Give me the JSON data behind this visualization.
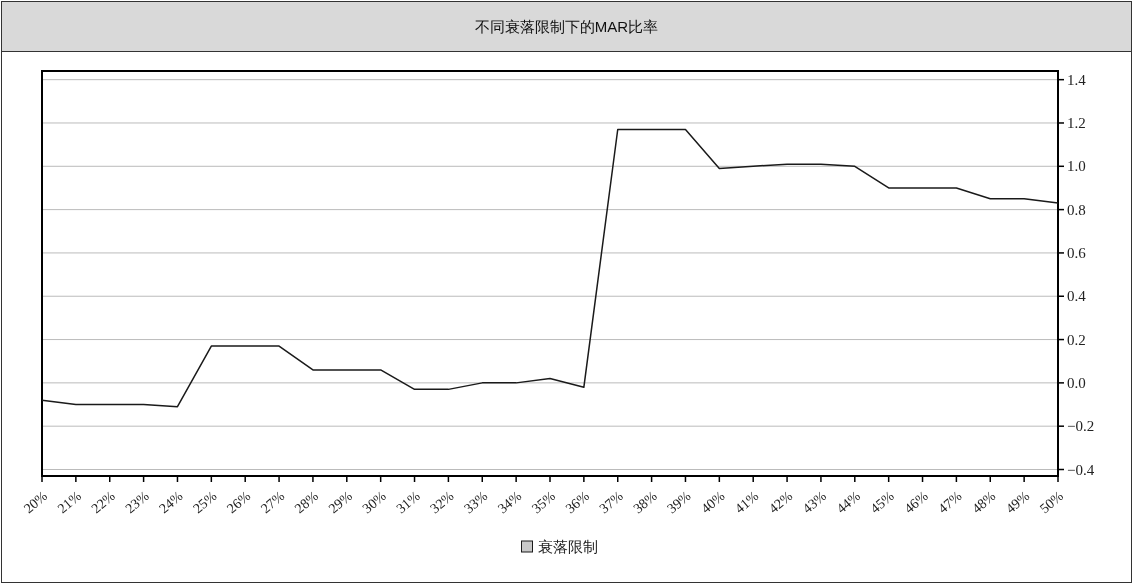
{
  "chart_data": {
    "type": "line",
    "title": "不同衰落限制下的MAR比率",
    "categories": [
      "20%",
      "21%",
      "22%",
      "23%",
      "24%",
      "25%",
      "26%",
      "27%",
      "28%",
      "29%",
      "30%",
      "31%",
      "32%",
      "33%",
      "34%",
      "35%",
      "36%",
      "37%",
      "38%",
      "39%",
      "40%",
      "41%",
      "42%",
      "43%",
      "44%",
      "45%",
      "46%",
      "47%",
      "48%",
      "49%",
      "50%"
    ],
    "series": [
      {
        "name": "衰落限制",
        "color": "#1a1a1a",
        "values": [
          -0.08,
          -0.1,
          -0.1,
          -0.1,
          -0.11,
          0.17,
          0.17,
          0.17,
          0.06,
          0.06,
          0.06,
          -0.03,
          -0.03,
          0.0,
          0.0,
          0.02,
          -0.02,
          1.17,
          1.17,
          1.17,
          0.99,
          1.0,
          1.01,
          1.01,
          1.0,
          0.9,
          0.9,
          0.9,
          0.85,
          0.85,
          0.83
        ]
      }
    ],
    "ylim": [
      -0.43,
      1.44
    ],
    "yticks": [
      {
        "value": 1.4,
        "label": "1.4"
      },
      {
        "value": 1.2,
        "label": "1.2"
      },
      {
        "value": 1.0,
        "label": "1.0"
      },
      {
        "value": 0.8,
        "label": "0.8"
      },
      {
        "value": 0.6,
        "label": "0.6"
      },
      {
        "value": 0.4,
        "label": "0.4"
      },
      {
        "value": 0.2,
        "label": "0.2"
      },
      {
        "value": 0,
        "label": "0.0"
      },
      {
        "value": -0.2,
        "label": "−0.2"
      },
      {
        "value": -0.4,
        "label": "−0.4"
      }
    ],
    "grid": "y",
    "legend": "bottom",
    "marker": "none",
    "line_style": "solid"
  }
}
